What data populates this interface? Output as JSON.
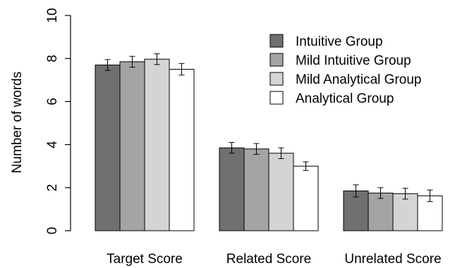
{
  "chart_data": {
    "type": "bar",
    "categories": [
      "Target Score",
      "Related Score",
      "Unrelated Score"
    ],
    "series": [
      {
        "name": "Intuitive Group",
        "color": "#707070",
        "values": [
          7.7,
          3.85,
          1.85
        ],
        "errors": [
          0.25,
          0.25,
          0.28
        ]
      },
      {
        "name": "Mild Intuitive Group",
        "color": "#a4a4a4",
        "values": [
          7.85,
          3.8,
          1.75
        ],
        "errors": [
          0.25,
          0.25,
          0.25
        ]
      },
      {
        "name": "Mild Analytical Group",
        "color": "#d4d4d4",
        "values": [
          7.97,
          3.6,
          1.72
        ],
        "errors": [
          0.25,
          0.25,
          0.25
        ]
      },
      {
        "name": "Analytical Group",
        "color": "#ffffff",
        "values": [
          7.5,
          3.0,
          1.62
        ],
        "errors": [
          0.27,
          0.2,
          0.27
        ]
      }
    ],
    "title": "",
    "xlabel": "",
    "ylabel": "Number of words",
    "ylim": [
      0,
      10
    ],
    "yticks": [
      0,
      2,
      4,
      6,
      8,
      10
    ],
    "grid": false,
    "legend_position": "top-right",
    "error_bars": true
  }
}
